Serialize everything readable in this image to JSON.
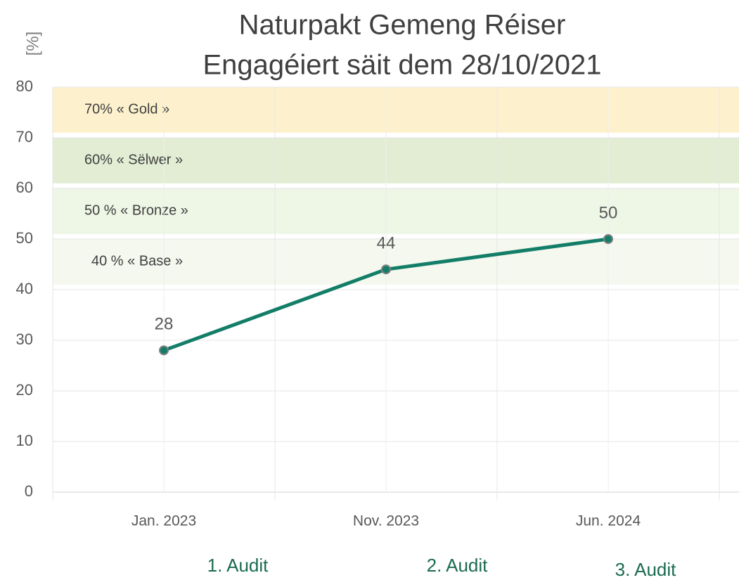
{
  "chart_data": {
    "type": "line",
    "title": "Naturpakt Gemeng Réiser",
    "subtitle": "Engagéiert säit dem 28/10/2021",
    "y_label": "[%]",
    "categories": [
      "Jan. 2023",
      "Nov. 2023",
      "Jun. 2024"
    ],
    "series": [
      {
        "color": "#137e68",
        "values": [
          28,
          44,
          50
        ]
      }
    ],
    "ylim": [
      0,
      80
    ],
    "yticks": [
      0,
      10,
      20,
      30,
      40,
      50,
      60,
      70,
      80
    ],
    "grid": true,
    "bands": [
      {
        "label": "70% « Gold »",
        "from": 71,
        "to": 80,
        "color": "#fdf1cd"
      },
      {
        "label": "60% « Sëlwer »",
        "from": 61,
        "to": 70,
        "color": "#e3edd4"
      },
      {
        "label": "50 % « Bronze »",
        "from": 51,
        "to": 60,
        "color": "#eef6e5"
      },
      {
        "label": "40 % « Base »",
        "from": 41,
        "to": 50,
        "color": "#f4f8ee"
      }
    ],
    "annotations": [
      "1. Audit",
      "2. Audit",
      "3. Audit"
    ]
  }
}
